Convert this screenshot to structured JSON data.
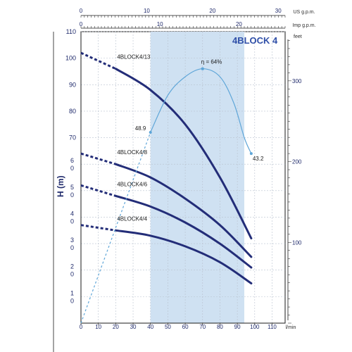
{
  "chart_data": {
    "type": "line",
    "title": "4BLOCK 4",
    "ylabel": "H  (m)",
    "x_axes": {
      "bottom": {
        "unit": "l/min",
        "ticks": [
          "0",
          "10",
          "20",
          "30",
          "40",
          "50",
          "60",
          "70",
          "80",
          "90",
          "100",
          "110"
        ],
        "range": [
          0,
          110
        ]
      },
      "top_us": {
        "unit": "US g.p.m.",
        "ticks": [
          "0",
          "10",
          "20",
          "30"
        ]
      },
      "top_imp": {
        "unit": "Imp g.p.m.",
        "ticks": [
          "0",
          "10",
          "20"
        ]
      }
    },
    "y_axes": {
      "left": {
        "unit": "m",
        "ticks": [
          "110",
          "100",
          "90",
          "80",
          "70",
          "6\n0",
          "5\n0",
          "4\n0",
          "3\n0",
          "2\n0",
          "1\n0"
        ],
        "range": [
          0,
          110
        ]
      },
      "right": {
        "unit": "feet",
        "ticks": [
          "100",
          "200",
          "300"
        ]
      }
    },
    "efficiency_band": {
      "from": 40,
      "to": 94
    },
    "series": [
      {
        "name": "4BLOCK4/13",
        "color": "#232d78",
        "dashed": [
          [
            0,
            102
          ],
          [
            20,
            96
          ]
        ],
        "solid": [
          [
            20,
            96
          ],
          [
            40,
            88
          ],
          [
            60,
            75
          ],
          [
            80,
            55
          ],
          [
            98,
            32
          ]
        ]
      },
      {
        "name": "4BLOCK4/8",
        "color": "#232d78",
        "dashed": [
          [
            0,
            64
          ],
          [
            20,
            60
          ]
        ],
        "solid": [
          [
            20,
            60
          ],
          [
            40,
            55
          ],
          [
            60,
            47
          ],
          [
            80,
            37
          ],
          [
            98,
            25
          ]
        ]
      },
      {
        "name": "4BLOCK4/6",
        "color": "#232d78",
        "dashed": [
          [
            0,
            52
          ],
          [
            20,
            48
          ]
        ],
        "solid": [
          [
            20,
            48
          ],
          [
            40,
            44
          ],
          [
            60,
            38
          ],
          [
            80,
            30
          ],
          [
            98,
            21
          ]
        ]
      },
      {
        "name": "4BLOCK4/4",
        "color": "#232d78",
        "dashed": [
          [
            0,
            37
          ],
          [
            20,
            35
          ]
        ],
        "solid": [
          [
            20,
            35
          ],
          [
            40,
            33
          ],
          [
            60,
            29
          ],
          [
            80,
            23
          ],
          [
            98,
            15
          ]
        ]
      }
    ],
    "efficiency": {
      "color": "#5fa6d8",
      "dashed": [
        [
          0,
          0
        ],
        [
          40,
          72
        ]
      ],
      "solid": [
        [
          40,
          72
        ],
        [
          50,
          86
        ],
        [
          60,
          93
        ],
        [
          70,
          96
        ],
        [
          80,
          93
        ],
        [
          88,
          83
        ],
        [
          94,
          70
        ],
        [
          98,
          64
        ]
      ],
      "labels": [
        "η = 64%",
        "48.9",
        "43.2"
      ]
    },
    "grid": true
  },
  "colors": {
    "band": "#cfe1f2",
    "curve": "#232d78",
    "efficiency": "#5fa6d8",
    "title": "#2f4fa8"
  }
}
